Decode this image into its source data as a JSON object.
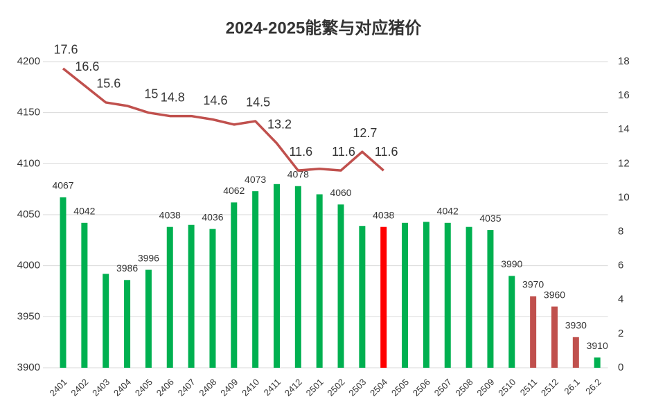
{
  "chart_data": {
    "type": "bar-line",
    "title": "2024-2025能繁与对应猪价",
    "categories": [
      "2401",
      "2402",
      "2403",
      "2404",
      "2405",
      "2406",
      "2407",
      "2408",
      "2409",
      "2410",
      "2411",
      "2412",
      "2501",
      "2502",
      "2503",
      "2504",
      "2505",
      "2506",
      "2507",
      "2508",
      "2509",
      "2510",
      "2511",
      "2512",
      "26.1",
      "26.2"
    ],
    "series": [
      {
        "name": "能繁",
        "type": "bar",
        "axis": "y",
        "colors": [
          "#00b050",
          "#00b050",
          "#00b050",
          "#00b050",
          "#00b050",
          "#00b050",
          "#00b050",
          "#00b050",
          "#00b050",
          "#00b050",
          "#00b050",
          "#00b050",
          "#00b050",
          "#00b050",
          "#00b050",
          "#ff0000",
          "#00b050",
          "#00b050",
          "#00b050",
          "#00b050",
          "#00b050",
          "#00b050",
          "#c0504d",
          "#c0504d",
          "#c0504d",
          "#00b050"
        ],
        "values": [
          4067,
          4042,
          3992,
          3986,
          3996,
          4038,
          4040,
          4036,
          4062,
          4073,
          4080,
          4078,
          4070,
          4060,
          4039,
          4038,
          4042,
          4043,
          4042,
          4038,
          4035,
          3990,
          3970,
          3960,
          3930,
          3910
        ],
        "value_labels": [
          "4067",
          "4042",
          null,
          "3986",
          "3996",
          "4038",
          null,
          "4036",
          "4062",
          "4073",
          null,
          "4078",
          null,
          "4060",
          null,
          "4038",
          null,
          null,
          "4042",
          null,
          "4035",
          "3990",
          "3970",
          "3960",
          "3930",
          "3910"
        ]
      },
      {
        "name": "猪价",
        "type": "line",
        "axis": "y2",
        "color": "#c0504d",
        "values": [
          17.6,
          16.6,
          15.6,
          15.4,
          15,
          14.8,
          14.8,
          14.6,
          14.3,
          14.5,
          13.2,
          11.6,
          11.7,
          11.6,
          12.7,
          11.6,
          null,
          null,
          null,
          null,
          null,
          null,
          null,
          null,
          null,
          null
        ],
        "value_labels": [
          "17.6",
          "16.6",
          "15.6",
          null,
          "15",
          "14.8",
          null,
          "14.6",
          null,
          "14.5",
          "13.2",
          "11.6",
          null,
          "11.6",
          "12.7",
          "11.6",
          null,
          null,
          null,
          null,
          null,
          null,
          null,
          null,
          null,
          null
        ]
      }
    ],
    "ylim": [
      3900,
      4200
    ],
    "yticks": [
      3900,
      3950,
      4000,
      4050,
      4100,
      4150,
      4200
    ],
    "y2lim": [
      0,
      18
    ],
    "y2ticks": [
      0,
      2,
      4,
      6,
      8,
      10,
      12,
      14,
      16,
      18
    ],
    "grid": true
  }
}
